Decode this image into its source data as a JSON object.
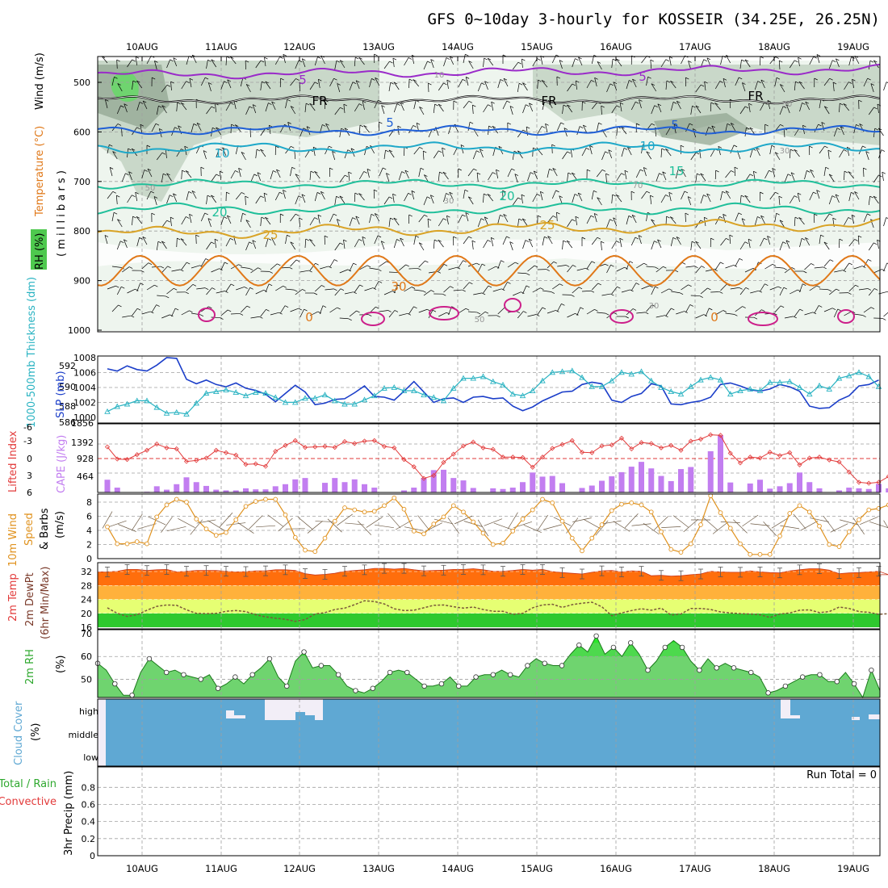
{
  "page": {
    "title": "GFS 0~10day 3-hourly for KOSSEIR (34.25E, 26.25N)"
  },
  "dates": [
    "10AUG",
    "11AUG",
    "12AUG",
    "13AUG",
    "14AUG",
    "15AUG",
    "16AUG",
    "17AUG",
    "18AUG",
    "19AUG"
  ],
  "colors": {
    "purple": "#9a2bc9",
    "blue": "#1f5fd6",
    "cyan": "#1ea8c9",
    "teal": "#1fbf9a",
    "gold": "#d9a326",
    "orange": "#e07818",
    "magenta": "#cc1f8a",
    "rh1": "#e3eee3",
    "rh2": "#b9ccb9",
    "rh3": "#8fa48f",
    "rh4": "#6fd46f",
    "slp": "#1b3ec9",
    "thk": "#2ab3c2",
    "li": "#e23a3a",
    "cape": "#c27ef0",
    "wind": "#e0921e",
    "cloud": "#5fa8d3",
    "rhfill": "#6fd46f",
    "rhhigh": "#27e827"
  },
  "chart_data": [
    {
      "type": "contour",
      "name": "upper-air cross section",
      "ylabel": "( m i l l i b a r s )",
      "side_labels": {
        "wind": "Wind (m/s)",
        "temp": "Temperature (°C)",
        "rh": "RH (%)"
      },
      "y_ticks": [
        500,
        600,
        700,
        800,
        900,
        1000
      ],
      "ylim": [
        450,
        1000
      ],
      "temperature_contours": [
        {
          "label": "-5",
          "level": -5,
          "color": "purple",
          "base": 485,
          "amp": 6
        },
        {
          "label": "FR",
          "level": 0,
          "color": "black",
          "base": 535,
          "amp": 5
        },
        {
          "label": "5",
          "level": 5,
          "color": "blue",
          "base": 597,
          "amp": 6
        },
        {
          "label": "10",
          "level": 10,
          "color": "cyan",
          "base": 632,
          "amp": 7
        },
        {
          "label": "15",
          "level": 15,
          "color": "teal",
          "base": 705,
          "amp": 6
        },
        {
          "label": "20",
          "level": 20,
          "color": "teal",
          "base": 755,
          "amp": 7
        },
        {
          "label": "25",
          "level": 25,
          "color": "gold",
          "base": 805,
          "amp": 8
        },
        {
          "label": "30",
          "level": 30,
          "color": "orange",
          "base": 880,
          "amp": 30
        }
      ],
      "contour_labels": [
        "5",
        "FR",
        "5",
        "10",
        "20",
        "25",
        "30",
        "15",
        "10",
        "20",
        "25",
        "5",
        "FR",
        "5",
        "10",
        "15",
        "20",
        "25",
        "30",
        "0",
        "0"
      ],
      "rh_labels": [
        "10",
        "30",
        "50",
        "70",
        "30",
        "50",
        "70",
        "30",
        "30",
        "50"
      ]
    },
    {
      "type": "line",
      "name": "SLP and thickness",
      "ylabel_left": "1000-500mb Thickness (dm)",
      "ylabel_right": "SLP (mb)",
      "left_ticks": [
        586,
        588,
        590,
        592
      ],
      "right_ticks": [
        1000,
        1002,
        1004,
        1006,
        1008
      ],
      "series": [
        {
          "name": "SLP (mb)",
          "values": [
            1006.5,
            1006.2,
            1006.9,
            1006.4,
            1006.2,
            1007.0,
            1008.0,
            1007.9,
            1005.1,
            1004.5,
            1005.0,
            1004.4,
            1004.1,
            1004.6,
            1003.9,
            1003.6,
            1003.1,
            1002.1,
            1003.2,
            1004.3,
            1003.4,
            1001.7,
            1001.9,
            1002.4,
            1002.5,
            1003.3,
            1004.2,
            1002.8,
            1002.7,
            1002.3,
            1003.5,
            1004.8,
            1003.4,
            1002.0,
            1002.5,
            1002.6,
            1002.0,
            1002.7,
            1002.8,
            1002.5,
            1002.6,
            1001.5,
            1000.9,
            1001.4,
            1002.2,
            1002.8,
            1003.4,
            1003.5,
            1004.4,
            1004.7,
            1004.5,
            1002.3,
            1002.0,
            1002.8,
            1003.2,
            1004.5,
            1004.2,
            1001.8,
            1001.7,
            1002.0,
            1002.2,
            1002.7,
            1004.4,
            1004.6,
            1004.2,
            1003.7,
            1003.5,
            1003.8,
            1004.4,
            1004.1,
            1003.5,
            1001.5,
            1001.2,
            1001.3,
            1002.3,
            1002.9,
            1004.2,
            1004.4,
            1005.0
          ]
        },
        {
          "name": "Thickness (dm)",
          "values": [
            586.7,
            587.3,
            587.6,
            588.0,
            588.0,
            587.2,
            586.5,
            586.6,
            586.4,
            587.7,
            588.9,
            589.1,
            589.3,
            589.0,
            588.6,
            589.0,
            588.9,
            588.4,
            587.8,
            587.8,
            588.3,
            588.3,
            588.7,
            588.0,
            587.6,
            587.6,
            588.1,
            588.6,
            589.5,
            589.6,
            589.2,
            589.2,
            588.7,
            588.4,
            588.0,
            589.5,
            590.7,
            590.7,
            590.9,
            590.3,
            589.9,
            588.8,
            588.6,
            589.2,
            590.4,
            591.4,
            591.5,
            591.6,
            590.8,
            589.7,
            589.7,
            590.4,
            591.4,
            591.2,
            591.5,
            590.4,
            589.6,
            589.1,
            588.8,
            589.7,
            590.5,
            590.8,
            590.5,
            588.8,
            589.2,
            589.4,
            589.2,
            590.2,
            590.2,
            590.3,
            589.6,
            588.8,
            589.8,
            589.4,
            590.7,
            591.0,
            591.4,
            590.9,
            589.7
          ]
        }
      ]
    },
    {
      "type": "bar",
      "name": "Lifted Index and CAPE",
      "ylabel_left": "Lifted Index",
      "ylabel_right": "CAPE (J/kg)",
      "li_ticks": [
        "-6",
        "-3",
        "0",
        "3",
        "6"
      ],
      "cape_ticks": [
        "1856",
        "1392",
        "928",
        "464"
      ],
      "lifted_index": [
        -2.4,
        0.1,
        0.2,
        -0.8,
        -1.7,
        -3.0,
        -2.2,
        -2.0,
        0.6,
        0.4,
        -0.1,
        -1.7,
        -1.2,
        -0.7,
        1.2,
        1.1,
        1.6,
        -1.5,
        -2.7,
        -3.7,
        -2.3,
        -2.4,
        -2.5,
        -2.3,
        -3.5,
        -3.1,
        -3.6,
        -3.7,
        -2.5,
        -2.2,
        0.2,
        1.7,
        4.1,
        3.5,
        0.8,
        -0.9,
        -2.6,
        -3.4,
        -2.2,
        -1.9,
        -0.3,
        -0.3,
        -0.2,
        1.8,
        -0.3,
        -2.1,
        -2.9,
        -3.7,
        -1.3,
        -1.2,
        -2.6,
        -2.8,
        -4.2,
        -2.0,
        -3.3,
        -3.1,
        -2.2,
        -2.7,
        -1.7,
        -3.6,
        -4.0,
        -4.9,
        -4.8,
        -1.1,
        0.9,
        -0.3,
        -0.1,
        -1.3,
        -0.6,
        -1.2,
        1.3,
        -0.1,
        -0.3,
        0.3,
        0.7,
        2.8,
        4.9,
        5.1,
        4.9,
        3.7,
        1.6,
        -0.6,
        -0.4,
        0.8,
        -0.2,
        -0.5,
        0.5,
        -0.2,
        0.1
      ],
      "cape": [
        370,
        140,
        5,
        0,
        20,
        180,
        80,
        240,
        440,
        300,
        190,
        80,
        60,
        60,
        120,
        90,
        90,
        180,
        240,
        380,
        420,
        0,
        280,
        420,
        300,
        380,
        240,
        140,
        0,
        0,
        60,
        140,
        420,
        650,
        660,
        420,
        350,
        130,
        0,
        120,
        100,
        140,
        300,
        580,
        460,
        480,
        270,
        0,
        130,
        200,
        340,
        470,
        590,
        750,
        890,
        700,
        480,
        330,
        680,
        740,
        0,
        1200,
        1665,
        290,
        0,
        260,
        370,
        110,
        180,
        270,
        580,
        300,
        120,
        0,
        60,
        140,
        120,
        100,
        250,
        120,
        110,
        70
      ]
    },
    {
      "type": "line",
      "name": "10m wind speed",
      "ylabel": "10m Wind Speed & Barbs (m/s)",
      "ylabel_parts": [
        "10m Wind",
        "Speed",
        "& Barbs",
        "(m/s)"
      ],
      "y_ticks": [
        "0",
        "2",
        "4",
        "6",
        "8"
      ],
      "ylim": [
        0,
        9
      ],
      "values": [
        4.5,
        2.1,
        2.1,
        2.4,
        2.1,
        5.9,
        7.6,
        8.4,
        8.0,
        5.6,
        4.2,
        3.3,
        3.7,
        5.5,
        7.4,
        8.1,
        8.4,
        8.4,
        6.2,
        3.0,
        1.2,
        1.0,
        2.9,
        5.3,
        7.2,
        6.9,
        6.6,
        6.7,
        7.5,
        8.6,
        7.0,
        3.9,
        3.5,
        4.9,
        5.9,
        7.5,
        6.6,
        5.2,
        3.6,
        2.0,
        2.2,
        3.9,
        5.6,
        6.9,
        8.4,
        7.9,
        5.3,
        2.9,
        1.1,
        2.9,
        4.8,
        6.8,
        7.7,
        7.9,
        7.6,
        6.6,
        3.8,
        1.3,
        0.9,
        2.1,
        4.8,
        8.9,
        6.5,
        4.3,
        2.1,
        0.6,
        0.6,
        0.6,
        3.2,
        6.4,
        7.5,
        6.6,
        4.6,
        2.0,
        1.7,
        3.8,
        5.5,
        6.9,
        7.1,
        7.6,
        5.6,
        3.6,
        2.1,
        1.2,
        2.5,
        3.6,
        7.4,
        8.0
      ]
    },
    {
      "type": "area",
      "name": "2m temperature and dewpoint",
      "ylabel_parts": [
        "2m Temp",
        "2m DewPt",
        "(6hr Min/Max)"
      ],
      "y_ticks": [
        "16",
        "20",
        "24",
        "28",
        "32"
      ],
      "ylim": [
        15.5,
        34
      ],
      "temperature": [
        31.9,
        32.1,
        32.6,
        32.6,
        32.3,
        32.5,
        32.6,
        31.9,
        32.1,
        32.3,
        32.3,
        32.3,
        32.1,
        31.9,
        32.0,
        32.2,
        32.2,
        32.5,
        32.5,
        32.3,
        31.4,
        31.0,
        31.2,
        31.5,
        32.1,
        32.3,
        32.5,
        32.9,
        32.9,
        32.7,
        32.9,
        32.5,
        32.2,
        32.3,
        32.4,
        32.6,
        32.6,
        32.8,
        32.5,
        32.1,
        32.1,
        32.3,
        32.6,
        32.4,
        32.6,
        32.0,
        31.7,
        31.5,
        31.3,
        31.8,
        32.2,
        32.3,
        31.9,
        32.2,
        32.1,
        30.8,
        30.9,
        30.7,
        30.8,
        31.1,
        31.3,
        32.1,
        31.9,
        31.8,
        31.8,
        32.2,
        31.9,
        31.7,
        31.6,
        32.2,
        32.5,
        32.8,
        32.8,
        32.4,
        31.4,
        31.6,
        31.7,
        31.9,
        32.1,
        31.1
      ],
      "dewpoint": [
        21.6,
        20.0,
        19.1,
        19.6,
        20.9,
        22.0,
        22.4,
        22.3,
        21.0,
        20.0,
        19.9,
        20.0,
        20.6,
        20.8,
        20.5,
        19.6,
        19.0,
        18.6,
        18.3,
        17.7,
        18.2,
        19.8,
        20.2,
        21.1,
        21.5,
        22.5,
        23.6,
        23.4,
        22.7,
        21.3,
        20.8,
        20.9,
        21.6,
        22.3,
        22.4,
        21.9,
        21.5,
        21.8,
        21.1,
        20.6,
        20.6,
        19.7,
        20.0,
        21.6,
        22.4,
        22.6,
        21.7,
        22.5,
        22.9,
        23.2,
        21.9,
        19.3,
        20.1,
        20.8,
        21.3,
        20.9,
        21.5,
        19.5,
        19.8,
        21.4,
        21.4,
        21.1,
        20.4,
        20.1,
        19.9,
        19.8,
        19.6,
        18.8,
        19.8,
        20.1,
        20.9,
        21.0,
        20.2,
        20.5,
        21.8,
        21.4,
        20.5,
        20.3,
        19.7,
        19.9,
        20.4
      ]
    },
    {
      "type": "area",
      "name": "2m relative humidity",
      "ylabel": "2m RH (%)",
      "ylabel_parts": [
        "2m RH",
        "(%)"
      ],
      "y_ticks": [
        "50",
        "60",
        "70"
      ],
      "ylim": [
        42,
        70
      ],
      "values": [
        57,
        54,
        48,
        43,
        43,
        53,
        59,
        56,
        53,
        54,
        52,
        51,
        50,
        52,
        46,
        48,
        51,
        48,
        52,
        55,
        59,
        51,
        47,
        58,
        62,
        55,
        56,
        56,
        52,
        47,
        45,
        44,
        46,
        49,
        53,
        54,
        53,
        50,
        47,
        47,
        48,
        51,
        47,
        47,
        51,
        52,
        52,
        54,
        52,
        51,
        56,
        59,
        57,
        56,
        56,
        61,
        65,
        62,
        69,
        61,
        64,
        60,
        66,
        61,
        54,
        58,
        64,
        67,
        64,
        58,
        54,
        59,
        55,
        57,
        55,
        54,
        53,
        51,
        44,
        45,
        47,
        49,
        51,
        52,
        52,
        49,
        49,
        53,
        48,
        42,
        54,
        45
      ]
    },
    {
      "type": "area",
      "name": "Cloud Cover",
      "ylabel": "Cloud Cover (%)",
      "ylabel_parts": [
        "Cloud Cover",
        "(%)"
      ],
      "levels": [
        "high",
        "middle",
        "low"
      ]
    },
    {
      "type": "bar",
      "name": "3hr Precip",
      "ylabel": "3hr Precip (mm)",
      "ylabel_parts": [
        "Total / Rain",
        "Convective",
        "3hr Precip (mm)"
      ],
      "y_ticks": [
        "0",
        "0.2",
        "0.4",
        "0.6",
        "0.8"
      ],
      "ylim": [
        0,
        1.0
      ],
      "values": [],
      "run_total": "Run Total = 0"
    }
  ]
}
